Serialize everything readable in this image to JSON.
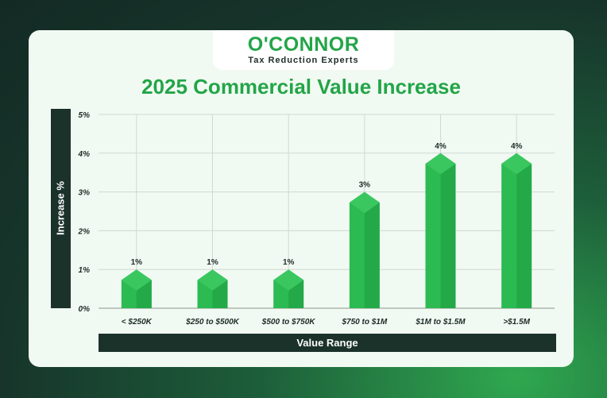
{
  "logo": {
    "name": "O'CONNOR",
    "tagline": "Tax Reduction Experts"
  },
  "colors": {
    "bar": "#2cba52",
    "bar_dark": "#1f9b41",
    "bar_light": "#44d06a",
    "accent": "#23a548",
    "label_bg": "#1b322b"
  },
  "chart_data": {
    "type": "bar",
    "title": "2025 Commercial Value Increase",
    "xlabel": "Value Range",
    "ylabel": "Increase %",
    "categories": [
      "< $250K",
      "$250 to $500K",
      "$500 to $750K",
      "$750 to $1M",
      "$1M to $1.5M",
      ">$1.5M"
    ],
    "values": [
      1,
      1,
      1,
      3,
      4,
      4
    ],
    "data_labels": [
      "1%",
      "1%",
      "1%",
      "3%",
      "4%",
      "4%"
    ],
    "ylim": [
      0,
      5
    ],
    "yticks": [
      "0%",
      "1%",
      "2%",
      "3%",
      "4%",
      "5%"
    ],
    "grid": true,
    "legend": "none"
  }
}
